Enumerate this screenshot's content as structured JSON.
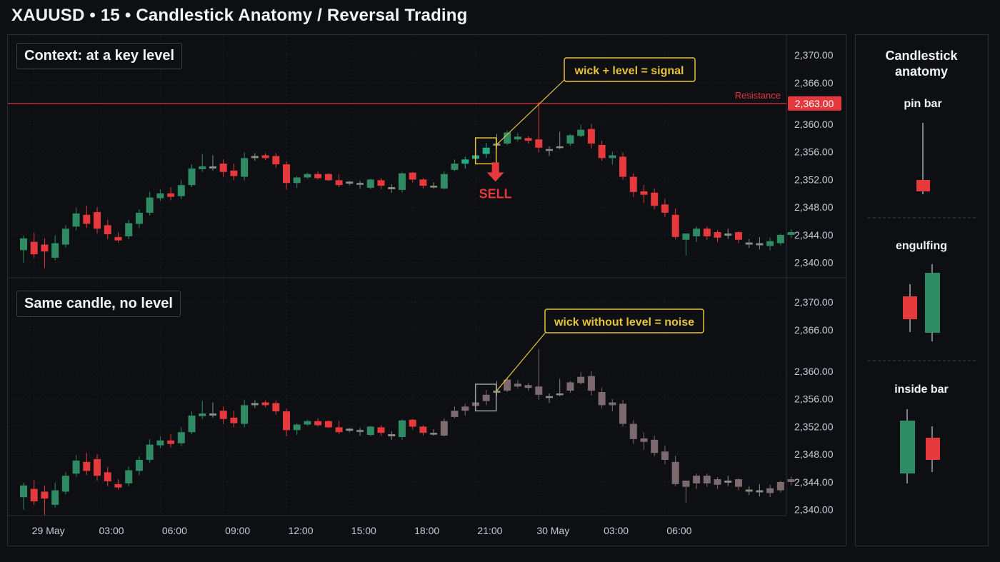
{
  "header": {
    "title": "XAUUSD  •  15  •  Candlestick Anatomy / Reversal Trading"
  },
  "panels": {
    "top_label": "Context: at a key level",
    "bottom_label": "Same candle, no level",
    "top_callout": "wick + level = signal",
    "bottom_callout": "wick without level = noise",
    "resistance_label": "Resistance",
    "resistance_price_tag": "2,363.00",
    "sell_label": "SELL"
  },
  "side": {
    "title_line1": "Candlestick",
    "title_line2": "anatomy",
    "items": [
      {
        "label": "pin bar"
      },
      {
        "label": "engulfing"
      },
      {
        "label": "inside bar"
      }
    ]
  },
  "colors": {
    "bull": "#2e8b63",
    "bear": "#e5393d",
    "neutral": "#8a8f86",
    "muted": "#7d6a6e",
    "highlight_bull": "#1fb08a",
    "resistance": "#e5393d",
    "callout": "#e6c43a"
  },
  "chart_data": {
    "type": "candlestick",
    "yticks": [
      "2,370.00",
      "2,366.00",
      "2,360.00",
      "2,356.00",
      "2,352.00",
      "2,348.00",
      "2,344.00",
      "2,340.00"
    ],
    "ytick_values": [
      2370,
      2366,
      2360,
      2356,
      2352,
      2348,
      2344,
      2340
    ],
    "xticks": [
      "29 May",
      "03:00",
      "06:00",
      "09:00",
      "12:00",
      "15:00",
      "18:00",
      "21:00",
      "30 May",
      "03:00",
      "06:00"
    ],
    "xtick_index": [
      1,
      7,
      13,
      19,
      25,
      31,
      37,
      43,
      49,
      55,
      61
    ],
    "resistance": 2363,
    "signal_index": 44,
    "candles": [
      {
        "o": 2341.8,
        "h": 2343.9,
        "l": 2340.0,
        "c": 2343.5
      },
      {
        "o": 2343.0,
        "h": 2344.3,
        "l": 2340.7,
        "c": 2341.2
      },
      {
        "o": 2342.6,
        "h": 2343.5,
        "l": 2339.2,
        "c": 2341.6
      },
      {
        "o": 2340.7,
        "h": 2343.9,
        "l": 2340.3,
        "c": 2342.8
      },
      {
        "o": 2342.6,
        "h": 2345.4,
        "l": 2342.2,
        "c": 2344.9
      },
      {
        "o": 2345.2,
        "h": 2347.9,
        "l": 2344.7,
        "c": 2347.1
      },
      {
        "o": 2346.9,
        "h": 2348.2,
        "l": 2345.0,
        "c": 2345.6
      },
      {
        "o": 2347.3,
        "h": 2348.0,
        "l": 2344.2,
        "c": 2344.9
      },
      {
        "o": 2345.4,
        "h": 2346.2,
        "l": 2343.4,
        "c": 2344.1
      },
      {
        "o": 2343.7,
        "h": 2344.4,
        "l": 2342.9,
        "c": 2343.2
      },
      {
        "o": 2343.8,
        "h": 2346.2,
        "l": 2343.4,
        "c": 2345.7
      },
      {
        "o": 2345.6,
        "h": 2347.7,
        "l": 2345.0,
        "c": 2347.2
      },
      {
        "o": 2347.2,
        "h": 2350.2,
        "l": 2346.8,
        "c": 2349.4
      },
      {
        "o": 2349.3,
        "h": 2350.6,
        "l": 2348.9,
        "c": 2350.0
      },
      {
        "o": 2350.0,
        "h": 2350.9,
        "l": 2349.0,
        "c": 2349.5
      },
      {
        "o": 2349.6,
        "h": 2351.9,
        "l": 2349.2,
        "c": 2351.2
      },
      {
        "o": 2351.2,
        "h": 2354.2,
        "l": 2350.9,
        "c": 2353.6
      },
      {
        "o": 2353.5,
        "h": 2355.7,
        "l": 2353.1,
        "c": 2353.9
      },
      {
        "o": 2353.9,
        "h": 2355.5,
        "l": 2353.3,
        "c": 2353.6
      },
      {
        "o": 2354.3,
        "h": 2354.9,
        "l": 2352.4,
        "c": 2353.1
      },
      {
        "o": 2353.3,
        "h": 2354.3,
        "l": 2351.9,
        "c": 2352.5
      },
      {
        "o": 2352.4,
        "h": 2355.9,
        "l": 2351.9,
        "c": 2355.1
      },
      {
        "o": 2355.1,
        "h": 2355.8,
        "l": 2354.7,
        "c": 2355.4
      },
      {
        "o": 2355.5,
        "h": 2355.8,
        "l": 2354.8,
        "c": 2355.1
      },
      {
        "o": 2355.4,
        "h": 2355.8,
        "l": 2353.7,
        "c": 2354.2
      },
      {
        "o": 2354.2,
        "h": 2354.6,
        "l": 2350.6,
        "c": 2351.5
      },
      {
        "o": 2351.5,
        "h": 2352.5,
        "l": 2350.8,
        "c": 2352.3
      },
      {
        "o": 2352.3,
        "h": 2353.0,
        "l": 2352.1,
        "c": 2352.8
      },
      {
        "o": 2352.8,
        "h": 2353.2,
        "l": 2352.0,
        "c": 2352.2
      },
      {
        "o": 2352.8,
        "h": 2352.9,
        "l": 2351.8,
        "c": 2351.9
      },
      {
        "o": 2351.9,
        "h": 2352.8,
        "l": 2350.9,
        "c": 2351.2
      },
      {
        "o": 2351.7,
        "h": 2351.8,
        "l": 2351.2,
        "c": 2351.4
      },
      {
        "o": 2351.4,
        "h": 2351.8,
        "l": 2350.7,
        "c": 2351.5
      },
      {
        "o": 2350.8,
        "h": 2352.1,
        "l": 2350.6,
        "c": 2352.0
      },
      {
        "o": 2351.9,
        "h": 2352.2,
        "l": 2350.6,
        "c": 2351.1
      },
      {
        "o": 2350.9,
        "h": 2351.3,
        "l": 2350.1,
        "c": 2350.6
      },
      {
        "o": 2350.5,
        "h": 2353.1,
        "l": 2350.1,
        "c": 2352.9
      },
      {
        "o": 2353.0,
        "h": 2353.1,
        "l": 2351.6,
        "c": 2352.0
      },
      {
        "o": 2352.0,
        "h": 2352.2,
        "l": 2350.7,
        "c": 2351.1
      },
      {
        "o": 2351.1,
        "h": 2351.6,
        "l": 2350.7,
        "c": 2351.0
      },
      {
        "o": 2350.7,
        "h": 2353.2,
        "l": 2350.6,
        "c": 2352.8
      },
      {
        "o": 2353.4,
        "h": 2354.9,
        "l": 2353.2,
        "c": 2354.3
      },
      {
        "o": 2354.3,
        "h": 2355.3,
        "l": 2353.6,
        "c": 2354.9
      },
      {
        "o": 2355.0,
        "h": 2356.3,
        "l": 2354.4,
        "c": 2355.5
      },
      {
        "o": 2355.7,
        "h": 2357.3,
        "l": 2355.1,
        "c": 2356.6
      },
      {
        "o": 2356.9,
        "h": 2358.6,
        "l": 2356.4,
        "c": 2357.2
      },
      {
        "o": 2357.2,
        "h": 2359.1,
        "l": 2357.0,
        "c": 2358.8
      },
      {
        "o": 2357.8,
        "h": 2358.7,
        "l": 2357.5,
        "c": 2358.2
      },
      {
        "o": 2358.0,
        "h": 2358.3,
        "l": 2357.2,
        "c": 2357.6
      },
      {
        "o": 2357.8,
        "h": 2363.2,
        "l": 2355.9,
        "c": 2356.6
      },
      {
        "o": 2356.2,
        "h": 2356.8,
        "l": 2355.4,
        "c": 2356.4
      },
      {
        "o": 2356.6,
        "h": 2358.9,
        "l": 2356.4,
        "c": 2356.8
      },
      {
        "o": 2357.2,
        "h": 2358.6,
        "l": 2356.9,
        "c": 2358.4
      },
      {
        "o": 2358.3,
        "h": 2359.9,
        "l": 2358.1,
        "c": 2359.2
      },
      {
        "o": 2359.3,
        "h": 2360.0,
        "l": 2356.5,
        "c": 2357.2
      },
      {
        "o": 2357.0,
        "h": 2357.6,
        "l": 2354.7,
        "c": 2355.1
      },
      {
        "o": 2355.1,
        "h": 2356.0,
        "l": 2354.2,
        "c": 2355.5
      },
      {
        "o": 2355.3,
        "h": 2355.9,
        "l": 2352.0,
        "c": 2352.4
      },
      {
        "o": 2352.4,
        "h": 2352.9,
        "l": 2349.5,
        "c": 2350.2
      },
      {
        "o": 2350.3,
        "h": 2351.2,
        "l": 2348.6,
        "c": 2349.8
      },
      {
        "o": 2350.1,
        "h": 2350.7,
        "l": 2347.7,
        "c": 2348.2
      },
      {
        "o": 2348.4,
        "h": 2349.2,
        "l": 2346.6,
        "c": 2347.2
      },
      {
        "o": 2346.9,
        "h": 2347.8,
        "l": 2343.4,
        "c": 2343.7
      },
      {
        "o": 2343.3,
        "h": 2344.1,
        "l": 2341.0,
        "c": 2344.2
      },
      {
        "o": 2343.8,
        "h": 2345.2,
        "l": 2343.0,
        "c": 2344.9
      },
      {
        "o": 2344.9,
        "h": 2345.2,
        "l": 2343.3,
        "c": 2343.8
      },
      {
        "o": 2344.4,
        "h": 2344.7,
        "l": 2343.0,
        "c": 2343.6
      },
      {
        "o": 2344.2,
        "h": 2344.9,
        "l": 2343.4,
        "c": 2343.9
      },
      {
        "o": 2344.4,
        "h": 2344.5,
        "l": 2342.8,
        "c": 2343.3
      },
      {
        "o": 2342.9,
        "h": 2343.4,
        "l": 2342.1,
        "c": 2342.6
      },
      {
        "o": 2342.5,
        "h": 2343.7,
        "l": 2341.9,
        "c": 2342.8
      },
      {
        "o": 2342.4,
        "h": 2343.6,
        "l": 2341.8,
        "c": 2343.1
      },
      {
        "o": 2342.8,
        "h": 2344.2,
        "l": 2342.5,
        "c": 2344.0
      },
      {
        "o": 2344.0,
        "h": 2344.8,
        "l": 2343.5,
        "c": 2344.4
      }
    ]
  }
}
